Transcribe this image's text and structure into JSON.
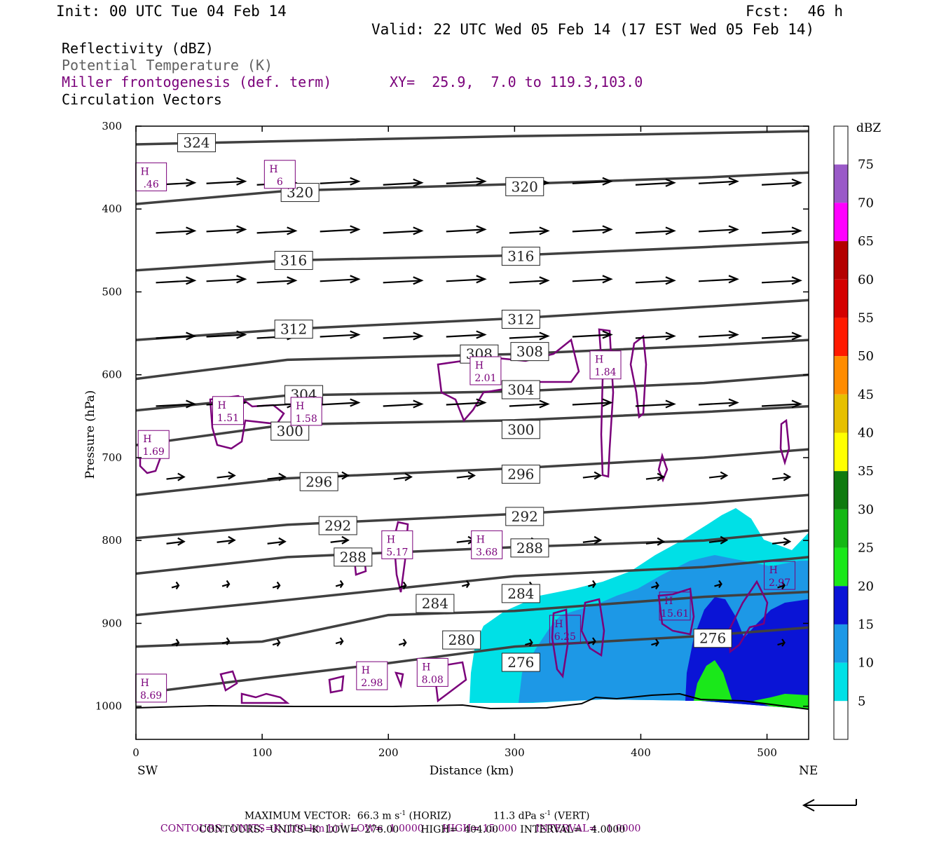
{
  "header": {
    "init": "Init: 00 UTC Tue 04 Feb 14",
    "fcst": "Fcst:  46 h",
    "valid": "Valid: 22 UTC Wed 05 Feb 14 (17 EST Wed 05 Feb 14)"
  },
  "legend_text": {
    "line1": "Reflectivity (dBZ)",
    "line2": "Potential Temperature (K)",
    "line3": "Miller frontogenesis (def. term)",
    "line3_xy": "XY=  25.9,  7.0 to 119.3,103.0",
    "line4": "Circulation Vectors"
  },
  "colors": {
    "theta": "#404040",
    "frontogenesis": "#7a007a",
    "vectors": "#000000",
    "dbz_scale": [
      "#ffffff",
      "#00e0e6",
      "#1d98e6",
      "#0a14d6",
      "#1ae81a",
      "#14b814",
      "#0f7a0f",
      "#ffff00",
      "#e6c000",
      "#ff8c00",
      "#ff1a00",
      "#d40000",
      "#b40000",
      "#ff00ff",
      "#9a5ac8"
    ]
  },
  "chart_data": {
    "type": "cross-section",
    "xlabel": "Distance (km)",
    "ylabel": "Pressure (hPa)",
    "x_ticks": [
      "0",
      "100",
      "200",
      "300",
      "400",
      "500"
    ],
    "y_ticks": [
      "300",
      "400",
      "500",
      "600",
      "700",
      "800",
      "900",
      "1000"
    ],
    "xlim": [
      0,
      533
    ],
    "ylim": [
      1040,
      300
    ],
    "endpoints": {
      "left": "SW",
      "right": "NE"
    },
    "colorbar": {
      "unit": "dBZ",
      "levels": [
        "5",
        "10",
        "15",
        "20",
        "25",
        "30",
        "35",
        "40",
        "45",
        "50",
        "55",
        "60",
        "65",
        "70",
        "75"
      ]
    },
    "theta_contours": [
      {
        "value": 324,
        "x": [
          0,
          150,
          300,
          400,
          533
        ],
        "p": [
          322,
          317,
          312,
          310,
          306
        ]
      },
      {
        "value": 320,
        "x": [
          0,
          120,
          300,
          450,
          533
        ],
        "p": [
          394,
          378,
          370,
          362,
          356
        ]
      },
      {
        "value": 316,
        "x": [
          0,
          120,
          300,
          450,
          533
        ],
        "p": [
          474,
          462,
          456,
          446,
          440
        ]
      },
      {
        "value": 312,
        "x": [
          0,
          120,
          300,
          450,
          533
        ],
        "p": [
          558,
          545,
          532,
          518,
          510
        ]
      },
      {
        "value": 308,
        "x": [
          0,
          120,
          300,
          450,
          533
        ],
        "p": [
          605,
          582,
          575,
          565,
          558
        ]
      },
      {
        "value": 304,
        "x": [
          0,
          120,
          300,
          450,
          533
        ],
        "p": [
          643,
          625,
          620,
          610,
          600
        ]
      },
      {
        "value": 300,
        "x": [
          0,
          120,
          300,
          450,
          533
        ],
        "p": [
          685,
          660,
          655,
          645,
          638
        ]
      },
      {
        "value": 296,
        "x": [
          0,
          120,
          300,
          450,
          533
        ],
        "p": [
          745,
          725,
          713,
          700,
          690
        ]
      },
      {
        "value": 292,
        "x": [
          0,
          120,
          300,
          450,
          533
        ],
        "p": [
          797,
          781,
          768,
          755,
          745
        ]
      },
      {
        "value": 288,
        "x": [
          0,
          120,
          300,
          450,
          533
        ],
        "p": [
          840,
          820,
          808,
          800,
          788
        ]
      },
      {
        "value": 284,
        "x": [
          0,
          100,
          300,
          450,
          533
        ],
        "p": [
          890,
          875,
          843,
          832,
          820
        ]
      },
      {
        "value": 280,
        "x": [
          0,
          100,
          200,
          300,
          450,
          533
        ],
        "p": [
          928,
          922,
          890,
          885,
          868,
          862
        ]
      },
      {
        "value": 276,
        "x": [
          0,
          100,
          200,
          300,
          450,
          533
        ],
        "p": [
          985,
          966,
          948,
          928,
          915,
          905
        ]
      }
    ],
    "theta_labels": [
      {
        "text": "324",
        "x": 48,
        "p": 320
      },
      {
        "text": "320",
        "x": 130,
        "p": 380
      },
      {
        "text": "320",
        "x": 308,
        "p": 373
      },
      {
        "text": "316",
        "x": 125,
        "p": 462
      },
      {
        "text": "316",
        "x": 305,
        "p": 457
      },
      {
        "text": "312",
        "x": 125,
        "p": 545
      },
      {
        "text": "312",
        "x": 305,
        "p": 533
      },
      {
        "text": "308",
        "x": 272,
        "p": 575
      },
      {
        "text": "308",
        "x": 312,
        "p": 572
      },
      {
        "text": "304",
        "x": 133,
        "p": 624
      },
      {
        "text": "304",
        "x": 305,
        "p": 618
      },
      {
        "text": "300",
        "x": 122,
        "p": 668
      },
      {
        "text": "300",
        "x": 305,
        "p": 666
      },
      {
        "text": "296",
        "x": 145,
        "p": 729
      },
      {
        "text": "296",
        "x": 305,
        "p": 720
      },
      {
        "text": "292",
        "x": 160,
        "p": 782
      },
      {
        "text": "292",
        "x": 308,
        "p": 771
      },
      {
        "text": "288",
        "x": 172,
        "p": 820
      },
      {
        "text": "288",
        "x": 312,
        "p": 809
      },
      {
        "text": "284",
        "x": 237,
        "p": 876
      },
      {
        "text": "284",
        "x": 305,
        "p": 864
      },
      {
        "text": "280",
        "x": 258,
        "p": 920
      },
      {
        "text": "276",
        "x": 305,
        "p": 947
      },
      {
        "text": "276",
        "x": 457,
        "p": 918
      }
    ],
    "frontogenesis_maxima": [
      {
        "label": "H",
        "value": ".46",
        "x": 12,
        "p": 362
      },
      {
        "label": "H",
        "value": "6",
        "x": 114,
        "p": 359
      },
      {
        "label": "H",
        "value": "2.01",
        "x": 277,
        "p": 596
      },
      {
        "label": "H",
        "value": "1.84",
        "x": 372,
        "p": 589
      },
      {
        "label": "H",
        "value": "1.51",
        "x": 73,
        "p": 644
      },
      {
        "label": "H",
        "value": "1.58",
        "x": 135,
        "p": 645
      },
      {
        "label": "H",
        "value": "1.69",
        "x": 14,
        "p": 685
      },
      {
        "label": "H",
        "value": "5.17",
        "x": 207,
        "p": 806
      },
      {
        "label": "H",
        "value": "3.68",
        "x": 278,
        "p": 806
      },
      {
        "label": "H",
        "value": "2.97",
        "x": 510,
        "p": 843
      },
      {
        "label": "H",
        "value": "15.61",
        "x": 427,
        "p": 880
      },
      {
        "label": "H",
        "value": "6.25",
        "x": 340,
        "p": 908
      },
      {
        "label": "H",
        "value": "2.98",
        "x": 187,
        "p": 964
      },
      {
        "label": "H",
        "value": "8.08",
        "x": 235,
        "p": 960
      },
      {
        "label": "H",
        "value": "8.69",
        "x": 12,
        "p": 979
      }
    ],
    "vector_rows_p": [
      370,
      428,
      488,
      555,
      637,
      725,
      803,
      856,
      925
    ]
  },
  "footer": {
    "line1_a": "MAXIMUM VECTOR:  66.3 m s",
    "line1_b": " (HORIZ)",
    "line1_c": "11.3 dPa s",
    "line1_d": " (VERT)",
    "line2": "CONTOURS:  UNITS=K (100 km h)",
    "line2_b": "  LOW=  1.0000      HIGH= 15.000      INTERVAL=   1.0000",
    "line3": "CONTOURS:  UNITS=K  LOW=  276.00       HIGH=  404.00       INTERVAL=   4.0000",
    "sup": "-1"
  }
}
